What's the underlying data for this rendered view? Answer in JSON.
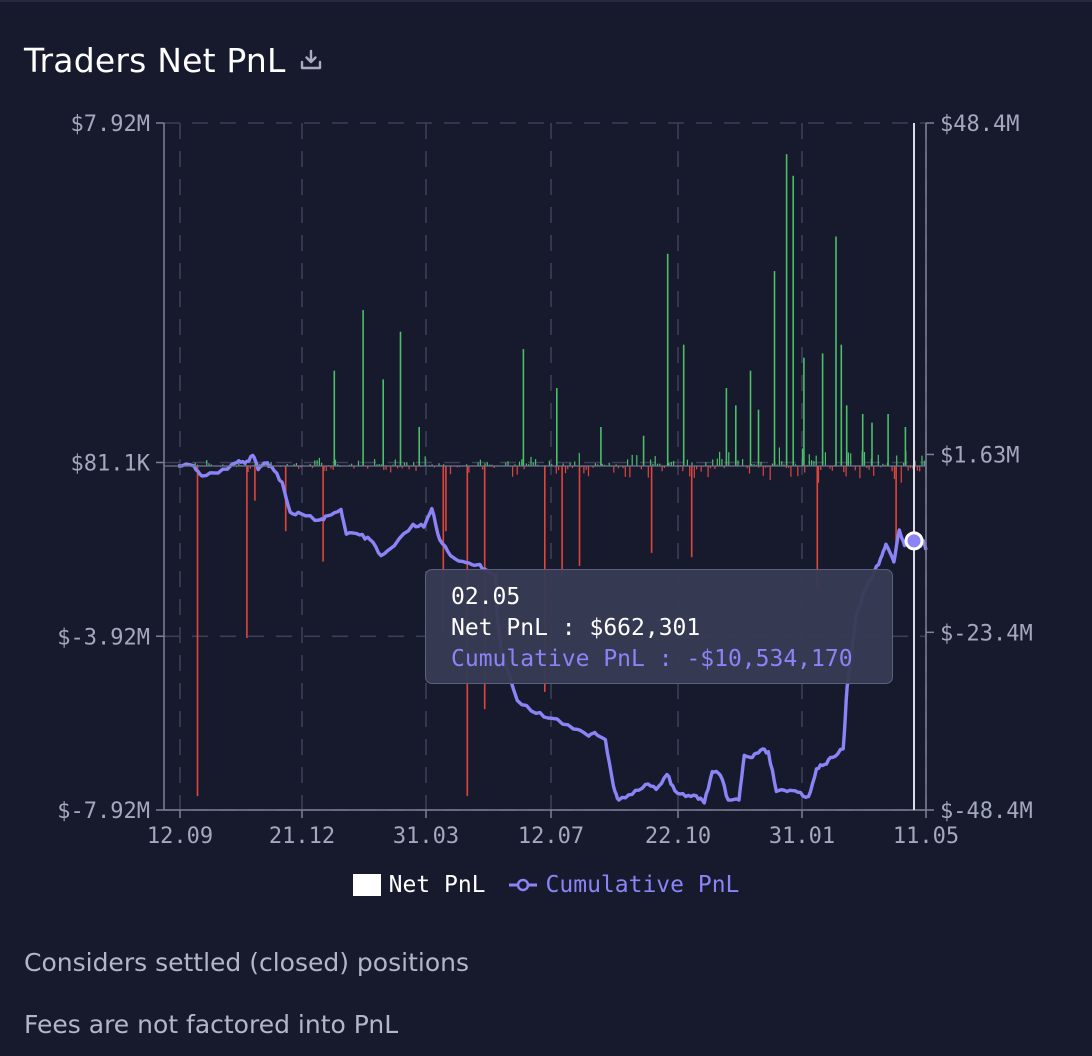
{
  "title": "Traders Net PnL",
  "icons": {
    "download": "download-icon"
  },
  "colors": {
    "background": "#171a2c",
    "positive_bar": "#4cbf6a",
    "negative_bar": "#e0453c",
    "cumulative_line": "#8b84f7"
  },
  "legend": {
    "net_pnl": "Net PnL",
    "cumulative_pnl": "Cumulative PnL"
  },
  "tooltip": {
    "date": "02.05",
    "net_pnl": "Net PnL : $662,301",
    "cumulative_pnl": "Cumulative PnL : -$10,534,170"
  },
  "notes": [
    "Considers settled (closed) positions",
    "Fees are not factored into PnL"
  ],
  "chart_data": {
    "type": "bar",
    "left_axis_ticks": [
      "$7.92M",
      "$81.1K",
      "$-3.92M",
      "$-7.92M"
    ],
    "left_axis_values": [
      7.92,
      0.0811,
      -3.92,
      -7.92
    ],
    "left_axis_range": [
      -7.92,
      7.92
    ],
    "left_axis_unit": "$M",
    "right_axis_ticks": [
      "$48.4M",
      "$1.63M",
      "$-23.4M",
      "$-48.4M"
    ],
    "right_axis_values": [
      48.4,
      1.63,
      -23.4,
      -48.4
    ],
    "right_axis_range": [
      -48.4,
      48.4
    ],
    "right_axis_unit": "$M",
    "x_tick_labels": [
      "12.09",
      "21.12",
      "31.03",
      "12.07",
      "22.10",
      "31.01",
      "11.05"
    ],
    "grid": "dashed",
    "legend_position": "bottom",
    "net_pnl_highlights": [
      {
        "pos": 0.7,
        "value": -7.6
      },
      {
        "pos": 2.55,
        "value": -3.96
      },
      {
        "pos": 2.85,
        "value": -0.8
      },
      {
        "pos": 4.0,
        "value": -1.5
      },
      {
        "pos": 5.4,
        "value": -2.2
      },
      {
        "pos": 5.82,
        "value": 2.2
      },
      {
        "pos": 6.9,
        "value": 3.6
      },
      {
        "pos": 7.65,
        "value": 2.0
      },
      {
        "pos": 8.3,
        "value": 3.1
      },
      {
        "pos": 9.0,
        "value": 0.9
      },
      {
        "pos": 9.9,
        "value": -3.8
      },
      {
        "pos": 10.0,
        "value": -1.5
      },
      {
        "pos": 10.8,
        "value": -7.6
      },
      {
        "pos": 11.45,
        "value": -5.6
      },
      {
        "pos": 12.9,
        "value": 2.7
      },
      {
        "pos": 13.7,
        "value": -5.2
      },
      {
        "pos": 14.15,
        "value": 1.8
      },
      {
        "pos": 14.35,
        "value": -2.6
      },
      {
        "pos": 15.0,
        "value": -2.3
      },
      {
        "pos": 15.8,
        "value": 0.9
      },
      {
        "pos": 17.4,
        "value": 0.7
      },
      {
        "pos": 17.7,
        "value": -2.0
      },
      {
        "pos": 18.3,
        "value": 4.9
      },
      {
        "pos": 18.9,
        "value": 2.8
      },
      {
        "pos": 19.2,
        "value": -2.1
      },
      {
        "pos": 20.5,
        "value": 1.8
      },
      {
        "pos": 20.85,
        "value": 1.4
      },
      {
        "pos": 21.4,
        "value": 2.2
      },
      {
        "pos": 21.7,
        "value": 1.3
      },
      {
        "pos": 22.3,
        "value": 4.5
      },
      {
        "pos": 22.75,
        "value": 7.2
      },
      {
        "pos": 23.0,
        "value": 6.7
      },
      {
        "pos": 23.4,
        "value": 2.5
      },
      {
        "pos": 23.9,
        "value": -2.8
      },
      {
        "pos": 24.1,
        "value": 2.6
      },
      {
        "pos": 24.6,
        "value": 5.3
      },
      {
        "pos": 24.8,
        "value": 2.8
      },
      {
        "pos": 25.0,
        "value": 1.4
      },
      {
        "pos": 25.6,
        "value": 1.2
      },
      {
        "pos": 25.95,
        "value": 1.0
      },
      {
        "pos": 26.55,
        "value": 1.2
      },
      {
        "pos": 26.85,
        "value": -1.8
      },
      {
        "pos": 27.2,
        "value": 0.9
      }
    ],
    "cumulative_pnl_path": [
      [
        0,
        0
      ],
      [
        0.6,
        0
      ],
      [
        0.9,
        -1.4
      ],
      [
        1.5,
        -1.0
      ],
      [
        2.2,
        0.5
      ],
      [
        2.5,
        0.4
      ],
      [
        2.8,
        1.5
      ],
      [
        3.0,
        -0.5
      ],
      [
        3.3,
        0.4
      ],
      [
        3.5,
        -0.1
      ],
      [
        3.9,
        -2.3
      ],
      [
        4.2,
        -6.5
      ],
      [
        4.6,
        -6.7
      ],
      [
        5.3,
        -7.6
      ],
      [
        5.6,
        -7.0
      ],
      [
        6.1,
        -6.1
      ],
      [
        6.3,
        -9.6
      ],
      [
        6.8,
        -9.7
      ],
      [
        7.2,
        -10.4
      ],
      [
        7.6,
        -12.6
      ],
      [
        8.1,
        -11.2
      ],
      [
        8.8,
        -8.2
      ],
      [
        9.2,
        -8.6
      ],
      [
        9.5,
        -6.0
      ],
      [
        9.8,
        -10.4
      ],
      [
        10.2,
        -12.6
      ],
      [
        10.8,
        -13.6
      ],
      [
        11.2,
        -13.9
      ],
      [
        11.6,
        -14.8
      ],
      [
        11.9,
        -15.3
      ],
      [
        11.95,
        -21.0
      ],
      [
        12.1,
        -26.0
      ],
      [
        12.7,
        -33.0
      ],
      [
        13.4,
        -34.8
      ],
      [
        14.0,
        -35.5
      ],
      [
        14.8,
        -37.0
      ],
      [
        15.3,
        -37.8
      ],
      [
        15.6,
        -37.5
      ],
      [
        16.0,
        -38.5
      ],
      [
        16.3,
        -45.0
      ],
      [
        16.5,
        -47.0
      ],
      [
        17.0,
        -46.2
      ],
      [
        17.5,
        -44.8
      ],
      [
        17.9,
        -45.5
      ],
      [
        18.3,
        -43.4
      ],
      [
        18.6,
        -45.7
      ],
      [
        19.0,
        -46.5
      ],
      [
        19.4,
        -46.4
      ],
      [
        19.7,
        -47.4
      ],
      [
        20.0,
        -43.0
      ],
      [
        20.3,
        -43.5
      ],
      [
        20.6,
        -47.0
      ],
      [
        21.0,
        -47.0
      ],
      [
        21.2,
        -40.7
      ],
      [
        21.5,
        -41.0
      ],
      [
        21.8,
        -40.0
      ],
      [
        22.1,
        -40.2
      ],
      [
        22.4,
        -45.8
      ],
      [
        22.8,
        -45.8
      ],
      [
        23.2,
        -45.9
      ],
      [
        23.6,
        -46.5
      ],
      [
        23.9,
        -42.6
      ],
      [
        24.2,
        -42.0
      ],
      [
        24.5,
        -41.0
      ],
      [
        24.9,
        -39.8
      ],
      [
        25.05,
        -31.0
      ],
      [
        25.2,
        -26.5
      ],
      [
        25.4,
        -21.0
      ],
      [
        25.7,
        -17.5
      ],
      [
        26.0,
        -15.5
      ],
      [
        26.3,
        -13.0
      ],
      [
        26.5,
        -11.0
      ],
      [
        26.8,
        -13.5
      ],
      [
        27.0,
        -9.0
      ],
      [
        27.2,
        -11.2
      ],
      [
        27.5,
        -10.0
      ],
      [
        27.7,
        -11.5
      ],
      [
        27.9,
        -10.5
      ],
      [
        28.0,
        -11.8
      ]
    ],
    "highlight_index": 27.4
  }
}
